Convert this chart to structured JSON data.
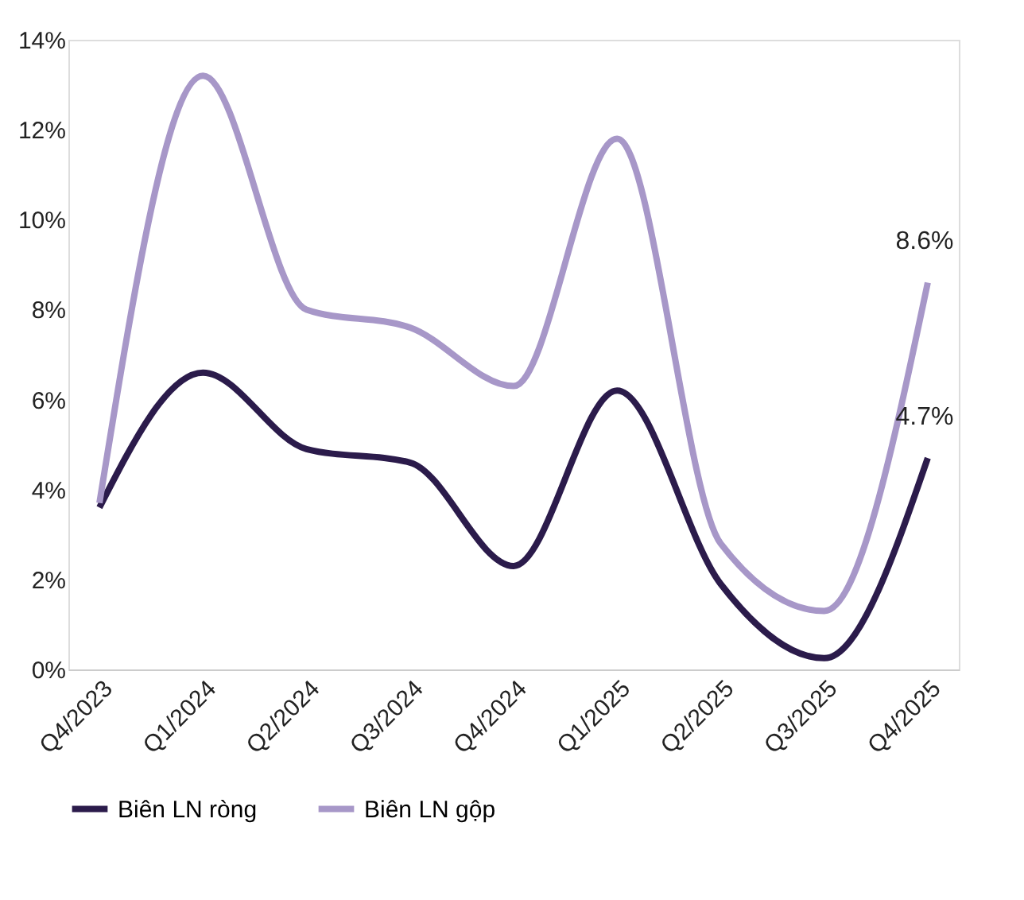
{
  "chart_data": {
    "type": "line",
    "categories": [
      "Q4/2023",
      "Q1/2024",
      "Q2/2024",
      "Q3/2024",
      "Q4/2024",
      "Q1/2025",
      "Q2/2025",
      "Q3/2025",
      "Q4/2025"
    ],
    "series": [
      {
        "name": "Biên LN ròng",
        "color": "#2b1b4b",
        "values": [
          3.6,
          6.6,
          4.9,
          4.6,
          2.3,
          6.2,
          1.9,
          0.25,
          4.7
        ],
        "value_labels": [
          null,
          null,
          null,
          null,
          null,
          null,
          null,
          null,
          "4.7%"
        ]
      },
      {
        "name": "Biên LN gộp",
        "color": "#a797c8",
        "values": [
          3.7,
          13.2,
          8.0,
          7.6,
          6.3,
          11.8,
          2.8,
          1.3,
          8.6
        ],
        "value_labels": [
          null,
          null,
          null,
          null,
          null,
          null,
          null,
          null,
          "8.6%"
        ]
      }
    ],
    "ylim": [
      0,
      14
    ],
    "yticks": [
      {
        "value": 0,
        "label": "0%"
      },
      {
        "value": 2,
        "label": "2%"
      },
      {
        "value": 4,
        "label": "4%"
      },
      {
        "value": 6,
        "label": "6%"
      },
      {
        "value": 8,
        "label": "8%"
      },
      {
        "value": 10,
        "label": "10%"
      },
      {
        "value": 12,
        "label": "12%"
      },
      {
        "value": 14,
        "label": "14%"
      }
    ],
    "grid": false,
    "legend": "bottom",
    "marker": "none",
    "line_style": "solid"
  }
}
